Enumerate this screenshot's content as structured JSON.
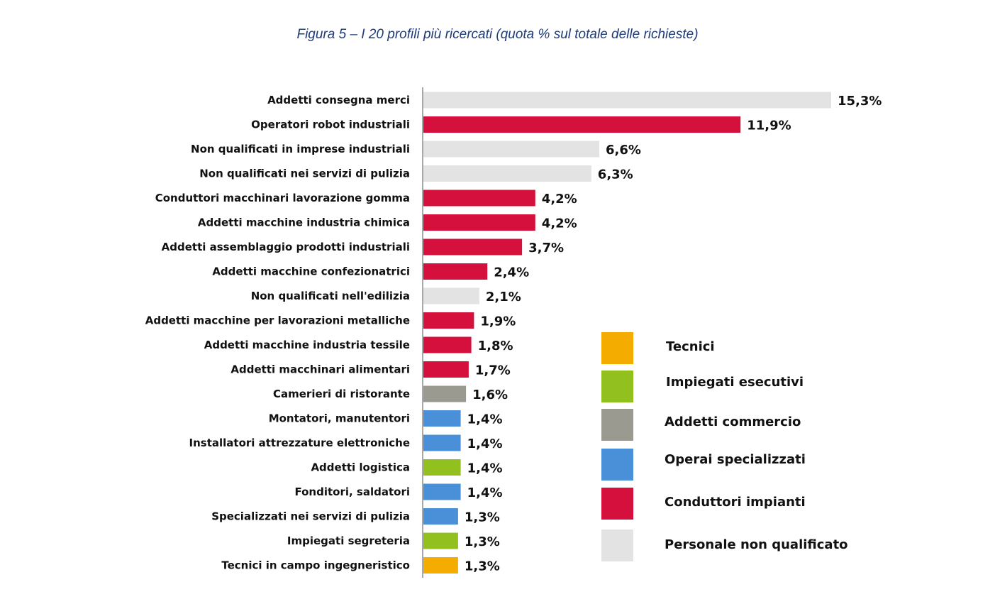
{
  "title": "Figura 5 – I 20 profili più ricercati (quota % sul totale delle richieste)",
  "chart_data": {
    "type": "bar",
    "orientation": "horizontal",
    "title": "Figura 5 – I 20 profili più ricercati (quota % sul totale delle richieste)",
    "xlabel": "",
    "ylabel": "",
    "xlim": [
      0,
      15.3
    ],
    "grid": false,
    "legend_position": "bottom-right",
    "colors": {
      "Tecnici": "#f5ac00",
      "Impiegati esecutivi": "#92c01f",
      "Addetti commercio": "#9b9a91",
      "Operai specializzati": "#4a90d9",
      "Conduttori impianti": "#d6103c",
      "Personale non qualificato": "#e3e3e3"
    },
    "legend": [
      "Tecnici",
      "Impiegati esecutivi",
      "Addetti commercio",
      "Operai specializzati",
      "Conduttori impianti",
      "Personale non qualificato"
    ],
    "bars": [
      {
        "category": "Addetti consegna merci",
        "value": 15.3,
        "label": "15,3%",
        "group": "Personale non qualificato"
      },
      {
        "category": "Operatori robot industriali",
        "value": 11.9,
        "label": "11,9%",
        "group": "Conduttori impianti"
      },
      {
        "category": "Non qualificati in imprese industriali",
        "value": 6.6,
        "label": "6,6%",
        "group": "Personale non qualificato"
      },
      {
        "category": "Non qualificati nei servizi di pulizia",
        "value": 6.3,
        "label": "6,3%",
        "group": "Personale non qualificato"
      },
      {
        "category": "Conduttori macchinari lavorazione gomma",
        "value": 4.2,
        "label": "4,2%",
        "group": "Conduttori impianti"
      },
      {
        "category": "Addetti macchine industria chimica",
        "value": 4.2,
        "label": "4,2%",
        "group": "Conduttori impianti"
      },
      {
        "category": "Addetti assemblaggio prodotti industriali",
        "value": 3.7,
        "label": "3,7%",
        "group": "Conduttori impianti"
      },
      {
        "category": "Addetti macchine confezionatrici",
        "value": 2.4,
        "label": "2,4%",
        "group": "Conduttori impianti"
      },
      {
        "category": "Non qualificati nell'edilizia",
        "value": 2.1,
        "label": "2,1%",
        "group": "Personale non qualificato"
      },
      {
        "category": "Addetti macchine per lavorazioni metalliche",
        "value": 1.9,
        "label": "1,9%",
        "group": "Conduttori impianti"
      },
      {
        "category": "Addetti macchine industria tessile",
        "value": 1.8,
        "label": "1,8%",
        "group": "Conduttori impianti"
      },
      {
        "category": "Addetti macchinari alimentari",
        "value": 1.7,
        "label": "1,7%",
        "group": "Conduttori impianti"
      },
      {
        "category": "Camerieri di ristorante",
        "value": 1.6,
        "label": "1,6%",
        "group": "Addetti commercio"
      },
      {
        "category": "Montatori, manutentori",
        "value": 1.4,
        "label": "1,4%",
        "group": "Operai specializzati"
      },
      {
        "category": "Installatori attrezzature elettroniche",
        "value": 1.4,
        "label": "1,4%",
        "group": "Operai specializzati"
      },
      {
        "category": "Addetti logistica",
        "value": 1.4,
        "label": "1,4%",
        "group": "Impiegati esecutivi"
      },
      {
        "category": "Fonditori, saldatori",
        "value": 1.4,
        "label": "1,4%",
        "group": "Operai specializzati"
      },
      {
        "category": "Specializzati nei servizi di pulizia",
        "value": 1.3,
        "label": "1,3%",
        "group": "Operai specializzati"
      },
      {
        "category": "Impiegati segreteria",
        "value": 1.3,
        "label": "1,3%",
        "group": "Impiegati esecutivi"
      },
      {
        "category": "Tecnici in campo ingegneristico",
        "value": 1.3,
        "label": "1,3%",
        "group": "Tecnici"
      }
    ]
  }
}
